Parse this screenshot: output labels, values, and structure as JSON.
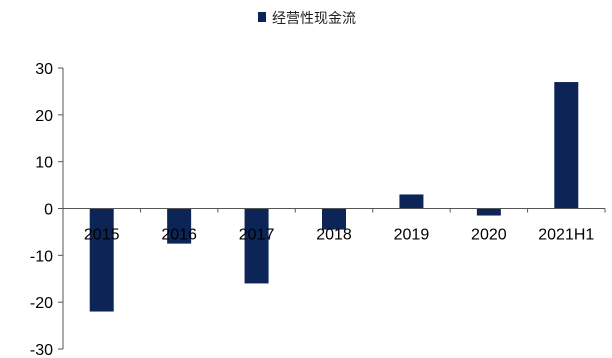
{
  "chart_data": {
    "type": "bar",
    "legend": {
      "position": "top-center",
      "entries": [
        "经营性现金流"
      ]
    },
    "categories": [
      "2015",
      "2016",
      "2017",
      "2018",
      "2019",
      "2020",
      "2021H1"
    ],
    "series": [
      {
        "name": "经营性现金流",
        "color": "#0d2556",
        "values": [
          -22,
          -7.5,
          -16,
          -4.5,
          3,
          -1.5,
          27
        ]
      }
    ],
    "ylim": [
      -30,
      30
    ],
    "yticks": [
      "-30",
      "-20",
      "-10",
      "0",
      "10",
      "20",
      "30"
    ],
    "grid": false
  }
}
